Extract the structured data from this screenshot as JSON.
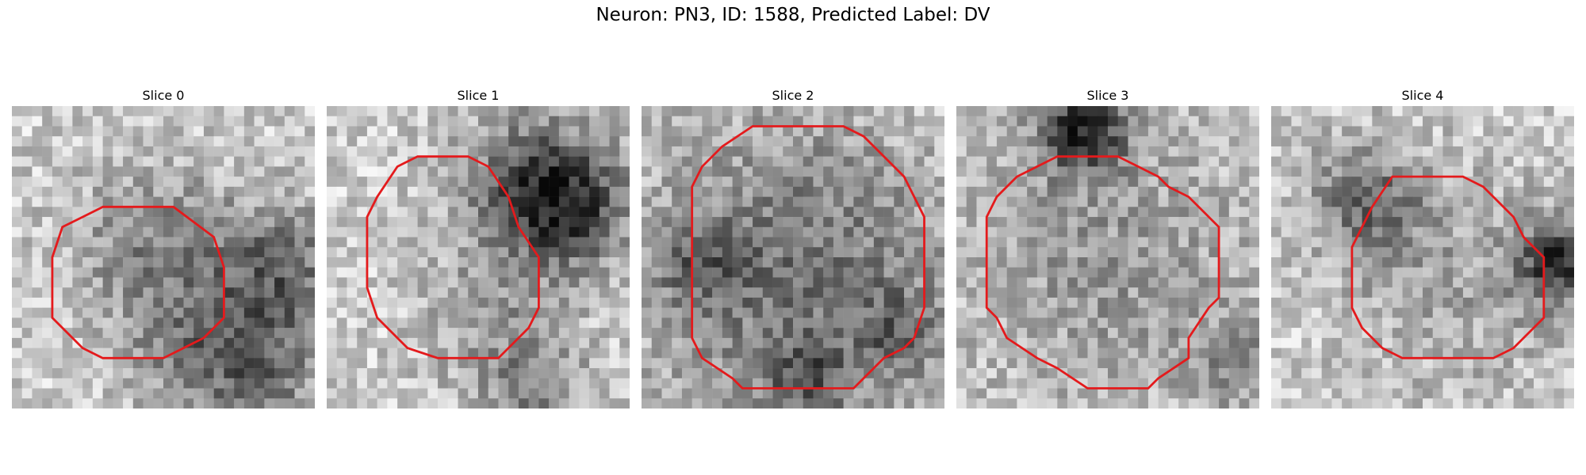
{
  "figure": {
    "title": "Neuron: PN3, ID: 1588, Predicted Label: DV"
  },
  "contour_color": "#e41a1c",
  "panels": [
    {
      "title": "Slice 0",
      "grid": 30,
      "seed": 11,
      "dark_blobs": [
        [
          14,
          14,
          6,
          0.28
        ],
        [
          26,
          17,
          5,
          0.4
        ],
        [
          17,
          24,
          4,
          0.25
        ],
        [
          24,
          27,
          4,
          0.3
        ]
      ],
      "contour": [
        [
          9,
          10
        ],
        [
          16,
          10
        ],
        [
          20,
          13
        ],
        [
          21,
          16
        ],
        [
          21,
          21
        ],
        [
          19,
          23
        ],
        [
          17,
          24
        ],
        [
          15,
          25
        ],
        [
          9,
          25
        ],
        [
          7,
          24
        ],
        [
          4,
          21
        ],
        [
          4,
          15
        ],
        [
          5,
          12
        ],
        [
          7,
          11
        ]
      ]
    },
    {
      "title": "Slice 1",
      "grid": 30,
      "seed": 23,
      "dark_blobs": [
        [
          20,
          7,
          5,
          0.45
        ],
        [
          24,
          10,
          4,
          0.4
        ],
        [
          16,
          20,
          5,
          0.18
        ],
        [
          20,
          28,
          4,
          0.25
        ]
      ],
      "contour": [
        [
          9,
          5
        ],
        [
          14,
          5
        ],
        [
          16,
          6
        ],
        [
          18,
          9
        ],
        [
          19,
          12
        ],
        [
          21,
          15
        ],
        [
          21,
          20
        ],
        [
          20,
          22
        ],
        [
          17,
          25
        ],
        [
          11,
          25
        ],
        [
          8,
          24
        ],
        [
          5,
          21
        ],
        [
          4,
          18
        ],
        [
          4,
          11
        ],
        [
          5,
          9
        ],
        [
          7,
          6
        ]
      ]
    },
    {
      "title": "Slice 2",
      "grid": 30,
      "seed": 37,
      "dark_blobs": [
        [
          15,
          16,
          11,
          0.35
        ],
        [
          5,
          15,
          3,
          0.25
        ],
        [
          25,
          22,
          3,
          0.25
        ],
        [
          16,
          27,
          3,
          0.3
        ]
      ],
      "contour": [
        [
          11,
          2
        ],
        [
          20,
          2
        ],
        [
          22,
          3
        ],
        [
          24,
          5
        ],
        [
          26,
          7
        ],
        [
          27,
          9
        ],
        [
          28,
          11
        ],
        [
          28,
          20
        ],
        [
          27,
          23
        ],
        [
          26,
          24
        ],
        [
          24,
          25
        ],
        [
          21,
          28
        ],
        [
          10,
          28
        ],
        [
          9,
          27
        ],
        [
          6,
          25
        ],
        [
          5,
          23
        ],
        [
          5,
          8
        ],
        [
          6,
          6
        ],
        [
          8,
          4
        ]
      ]
    },
    {
      "title": "Slice 3",
      "grid": 30,
      "seed": 53,
      "dark_blobs": [
        [
          12,
          2,
          3,
          0.6
        ],
        [
          15,
          15,
          11,
          0.2
        ],
        [
          27,
          25,
          3,
          0.2
        ]
      ],
      "contour": [
        [
          10,
          5
        ],
        [
          16,
          5
        ],
        [
          18,
          6
        ],
        [
          20,
          7
        ],
        [
          21,
          8
        ],
        [
          23,
          9
        ],
        [
          25,
          11
        ],
        [
          26,
          12
        ],
        [
          26,
          19
        ],
        [
          25,
          20
        ],
        [
          23,
          23
        ],
        [
          23,
          25
        ],
        [
          20,
          27
        ],
        [
          19,
          28
        ],
        [
          13,
          28
        ],
        [
          10,
          26
        ],
        [
          8,
          25
        ],
        [
          5,
          23
        ],
        [
          4,
          21
        ],
        [
          3,
          20
        ],
        [
          3,
          11
        ],
        [
          4,
          9
        ],
        [
          6,
          7
        ],
        [
          8,
          6
        ]
      ]
    },
    {
      "title": "Slice 4",
      "grid": 30,
      "seed": 71,
      "dark_blobs": [
        [
          9,
          9,
          4,
          0.35
        ],
        [
          28,
          15,
          3,
          0.55
        ],
        [
          18,
          17,
          8,
          0.15
        ]
      ],
      "contour": [
        [
          12,
          7
        ],
        [
          19,
          7
        ],
        [
          21,
          8
        ],
        [
          22,
          9
        ],
        [
          24,
          11
        ],
        [
          25,
          13
        ],
        [
          27,
          15
        ],
        [
          27,
          21
        ],
        [
          26,
          22
        ],
        [
          24,
          24
        ],
        [
          22,
          25
        ],
        [
          13,
          25
        ],
        [
          11,
          24
        ],
        [
          9,
          22
        ],
        [
          8,
          20
        ],
        [
          8,
          14
        ],
        [
          9,
          12
        ],
        [
          10,
          10
        ]
      ]
    }
  ]
}
